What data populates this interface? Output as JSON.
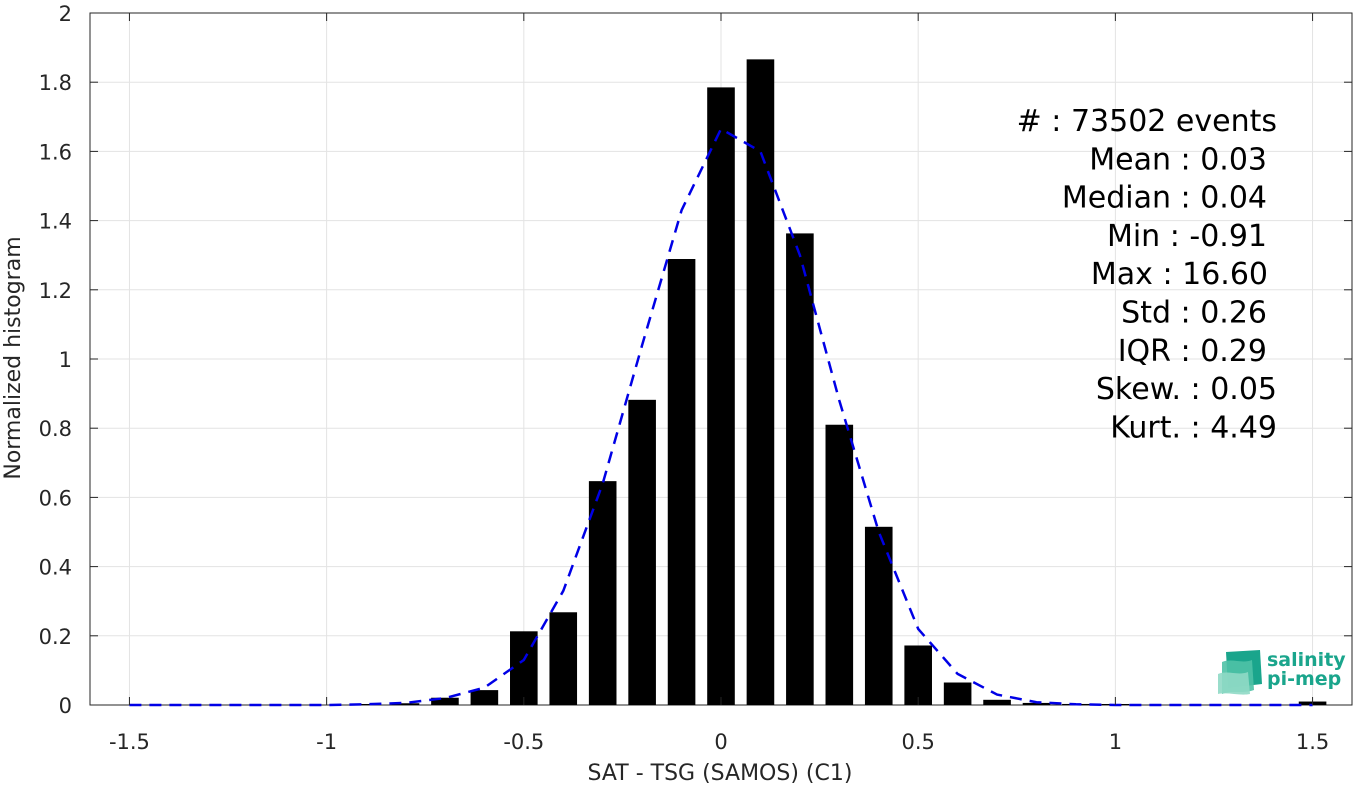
{
  "chart_data": {
    "type": "bar",
    "xlabel": "SAT - TSG (SAMOS) (C1)",
    "ylabel": "Normalized histogram",
    "xlim": [
      -1.6,
      1.6
    ],
    "ylim": [
      0,
      2
    ],
    "grid": true,
    "x_ticks": [
      -1.5,
      -1,
      -0.5,
      0,
      0.5,
      1,
      1.5
    ],
    "x_tick_labels": [
      "-1.5",
      "-1",
      "-0.5",
      "0",
      "0.5",
      "1",
      "1.5"
    ],
    "y_ticks": [
      0,
      0.2,
      0.4,
      0.6,
      0.8,
      1,
      1.2,
      1.4,
      1.6,
      1.8,
      2
    ],
    "y_tick_labels": [
      "0",
      "0.2",
      "0.4",
      "0.6",
      "0.8",
      "1",
      "1.2",
      "1.4",
      "1.6",
      "1.8",
      "2"
    ],
    "bar_width": 0.07,
    "bars": {
      "x": [
        -1.5,
        -1.4,
        -1.3,
        -1.2,
        -1.1,
        -1.0,
        -0.9,
        -0.8,
        -0.7,
        -0.6,
        -0.5,
        -0.4,
        -0.3,
        -0.2,
        -0.1,
        0.0,
        0.1,
        0.2,
        0.3,
        0.4,
        0.5,
        0.6,
        0.7,
        0.8,
        0.9,
        1.0,
        1.1,
        1.2,
        1.3,
        1.4,
        1.5
      ],
      "values": [
        0,
        0,
        0,
        0,
        0,
        0,
        0.001,
        0.005,
        0.021,
        0.043,
        0.213,
        0.268,
        0.647,
        0.882,
        1.289,
        1.785,
        1.866,
        1.363,
        0.81,
        0.515,
        0.172,
        0.065,
        0.015,
        0.006,
        0.003,
        0.001,
        0,
        0,
        0,
        0,
        0.01
      ],
      "color": "#000000"
    },
    "series": [
      {
        "style": "dashed",
        "color": "#0000e6",
        "x": [
          -1.5,
          -1.4,
          -1.3,
          -1.2,
          -1.1,
          -1.0,
          -0.9,
          -0.8,
          -0.7,
          -0.6,
          -0.5,
          -0.4,
          -0.3,
          -0.2,
          -0.1,
          0.0,
          0.1,
          0.2,
          0.3,
          0.4,
          0.5,
          0.6,
          0.7,
          0.8,
          0.9,
          1.0,
          1.1,
          1.2,
          1.3,
          1.4,
          1.5
        ],
        "values": [
          0,
          0,
          0,
          0,
          0,
          0,
          0.002,
          0.006,
          0.02,
          0.05,
          0.13,
          0.33,
          0.64,
          1.04,
          1.43,
          1.665,
          1.6,
          1.3,
          0.88,
          0.5,
          0.22,
          0.09,
          0.03,
          0.008,
          0.002,
          0,
          0,
          0,
          0,
          0,
          0
        ]
      }
    ],
    "annotations": [
      "#  : 73502 events",
      "Mean : 0.03",
      "Median : 0.04",
      "Min : -0.91",
      "Max : 16.60",
      "Std : 0.26",
      "IQR : 0.29",
      "Skew. : 0.05",
      "Kurt. : 4.49"
    ]
  },
  "logo": {
    "line1": "salinity",
    "line2": "pi-mep",
    "color": "#1aa58c"
  }
}
